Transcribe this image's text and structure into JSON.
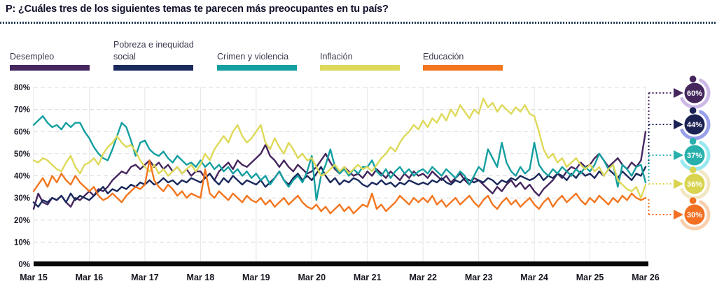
{
  "header": {
    "title": "P: ¿Cuáles tres de los siguientes temas te parecen más preocupantes en tu país?"
  },
  "legend": {
    "items": [
      {
        "label": "Desempleo",
        "color": "#45265e"
      },
      {
        "label": "Pobreza e inequidad social",
        "color": "#1b2a5c"
      },
      {
        "label": "Crimen y violencia",
        "color": "#149fa0"
      },
      {
        "label": "Inflación",
        "color": "#ded95a"
      },
      {
        "label": "Educación",
        "color": "#f3761f"
      }
    ]
  },
  "chart_data": {
    "type": "line",
    "title": "P: ¿Cuáles tres de los siguientes temas te parecen más preocupantes en tu país?",
    "xlabel": "",
    "ylabel": "",
    "ylim": [
      0,
      80
    ],
    "grid": true,
    "legend_position": "top",
    "x_tick_labels": [
      "Mar 15",
      "Mar 16",
      "Mar 17",
      "Mar 18",
      "Mar 19",
      "Mar 20",
      "Mar 21",
      "Mar 22",
      "Mar 23",
      "Mar 24",
      "Mar 25",
      "Mar 26"
    ],
    "y_tick_labels": [
      "0%",
      "10%",
      "20%",
      "30%",
      "40%",
      "50%",
      "60%",
      "70%",
      "80%"
    ],
    "points_frequency": "monthly (estimated from pixel trace)",
    "series": [
      {
        "name": "Desempleo",
        "color": "#45265e",
        "end_label": "60%",
        "values": [
          25,
          32,
          28,
          27,
          30,
          29,
          31,
          28,
          26,
          30,
          29,
          31,
          33,
          31,
          34,
          33,
          35,
          38,
          40,
          42,
          41,
          44,
          45,
          43,
          45,
          47,
          44,
          46,
          43,
          45,
          42,
          44,
          41,
          43,
          40,
          42,
          42,
          39,
          41,
          38,
          42,
          44,
          46,
          43,
          47,
          45,
          44,
          46,
          48,
          50,
          54,
          49,
          47,
          44,
          47,
          44,
          42,
          45,
          43,
          41,
          42,
          44,
          47,
          50,
          46,
          43,
          41,
          44,
          42,
          40,
          41,
          39,
          42,
          40,
          43,
          41,
          39,
          42,
          40,
          38,
          41,
          39,
          42,
          40,
          41,
          39,
          42,
          40,
          38,
          40,
          37,
          39,
          41,
          38,
          36,
          39,
          38,
          36,
          34,
          32,
          35,
          33,
          36,
          38,
          35,
          37,
          34,
          36,
          33,
          31,
          34,
          36,
          38,
          41,
          39,
          42,
          44,
          43,
          46,
          44,
          45,
          48,
          50,
          47,
          44,
          46,
          48,
          45,
          43,
          46,
          44,
          47,
          60
        ]
      },
      {
        "name": "Pobreza e inequidad social",
        "color": "#1b2a5c",
        "end_label": "44%",
        "values": [
          28,
          26,
          29,
          28,
          30,
          29,
          31,
          28,
          32,
          29,
          31,
          30,
          29,
          31,
          33,
          35,
          32,
          34,
          33,
          35,
          34,
          36,
          35,
          37,
          36,
          38,
          36,
          37,
          39,
          37,
          38,
          36,
          38,
          37,
          39,
          38,
          37,
          39,
          41,
          38,
          36,
          39,
          37,
          40,
          38,
          36,
          38,
          37,
          36,
          38,
          35,
          37,
          39,
          42,
          38,
          36,
          39,
          41,
          38,
          40,
          38,
          41,
          44,
          40,
          37,
          39,
          36,
          38,
          37,
          39,
          38,
          36,
          35,
          37,
          36,
          38,
          36,
          37,
          35,
          37,
          36,
          38,
          37,
          36,
          37,
          36,
          38,
          37,
          39,
          37,
          36,
          38,
          37,
          39,
          38,
          37,
          38,
          37,
          39,
          38,
          36,
          38,
          37,
          39,
          38,
          40,
          39,
          38,
          39,
          41,
          38,
          40,
          39,
          41,
          40,
          38,
          41,
          39,
          42,
          40,
          41,
          39,
          42,
          40,
          43,
          41,
          39,
          42,
          40,
          38,
          41,
          40,
          44
        ]
      },
      {
        "name": "Crimen y violencia",
        "color": "#149fa0",
        "end_label": "37%",
        "values": [
          63,
          65,
          67,
          64,
          62,
          63,
          61,
          64,
          62,
          64,
          64,
          60,
          57,
          53,
          50,
          48,
          47,
          52,
          58,
          64,
          62,
          56,
          49,
          55,
          56,
          52,
          50,
          49,
          51,
          48,
          46,
          49,
          47,
          45,
          46,
          44,
          47,
          44,
          46,
          43,
          45,
          42,
          44,
          41,
          43,
          40,
          42,
          39,
          41,
          38,
          40,
          36,
          39,
          42,
          38,
          35,
          38,
          40,
          37,
          42,
          49,
          29,
          40,
          45,
          52,
          44,
          41,
          43,
          40,
          43,
          41,
          44,
          44,
          47,
          42,
          40,
          43,
          39,
          42,
          44,
          41,
          43,
          40,
          42,
          43,
          41,
          44,
          42,
          40,
          43,
          41,
          39,
          42,
          40,
          36,
          40,
          44,
          42,
          52,
          48,
          44,
          55,
          46,
          42,
          40,
          44,
          41,
          43,
          55,
          45,
          42,
          40,
          43,
          41,
          44,
          42,
          40,
          43,
          41,
          44,
          42,
          45,
          50,
          47,
          43,
          45,
          35,
          45,
          43,
          40,
          44,
          45,
          37
        ]
      },
      {
        "name": "Inflación",
        "color": "#ded95a",
        "end_label": "36%",
        "values": [
          47,
          46,
          48,
          47,
          45,
          43,
          42,
          46,
          49,
          44,
          41,
          45,
          46,
          48,
          45,
          50,
          53,
          55,
          58,
          55,
          53,
          54,
          51,
          47,
          44,
          42,
          45,
          41,
          43,
          40,
          42,
          44,
          41,
          43,
          45,
          42,
          45,
          50,
          47,
          52,
          55,
          58,
          55,
          60,
          63,
          58,
          55,
          57,
          60,
          63,
          55,
          52,
          57,
          53,
          50,
          55,
          52,
          48,
          50,
          47,
          48,
          44,
          40,
          41,
          43,
          45,
          42,
          44,
          41,
          43,
          45,
          43,
          44,
          42,
          45,
          48,
          50,
          53,
          51,
          55,
          58,
          60,
          63,
          61,
          65,
          62,
          66,
          64,
          68,
          65,
          70,
          67,
          72,
          69,
          66,
          70,
          68,
          75,
          71,
          73,
          69,
          72,
          70,
          68,
          71,
          69,
          72,
          68,
          67,
          60,
          52,
          48,
          50,
          46,
          48,
          44,
          46,
          48,
          45,
          43,
          45,
          42,
          44,
          40,
          43,
          45,
          38,
          36,
          34,
          33,
          35,
          30,
          36
        ]
      },
      {
        "name": "Educación",
        "color": "#f3761f",
        "end_label": "30%",
        "values": [
          33,
          36,
          39,
          35,
          40,
          37,
          41,
          38,
          36,
          40,
          37,
          35,
          33,
          35,
          31,
          29,
          30,
          32,
          30,
          28,
          31,
          33,
          35,
          34,
          36,
          47,
          38,
          35,
          33,
          36,
          34,
          31,
          33,
          30,
          32,
          31,
          30,
          43,
          32,
          30,
          33,
          31,
          29,
          32,
          30,
          28,
          31,
          29,
          28,
          30,
          27,
          29,
          26,
          28,
          30,
          27,
          29,
          31,
          28,
          26,
          25,
          27,
          24,
          26,
          23,
          25,
          27,
          24,
          26,
          23,
          25,
          27,
          26,
          32,
          25,
          27,
          24,
          26,
          28,
          31,
          29,
          27,
          30,
          28,
          30,
          28,
          31,
          27,
          29,
          26,
          28,
          30,
          27,
          29,
          31,
          28,
          26,
          29,
          31,
          27,
          25,
          28,
          30,
          27,
          29,
          26,
          28,
          30,
          27,
          25,
          28,
          30,
          26,
          29,
          31,
          28,
          30,
          32,
          29,
          27,
          30,
          28,
          31,
          29,
          27,
          30,
          28,
          31,
          29,
          32,
          30,
          29,
          30
        ]
      }
    ]
  },
  "annotations": {
    "badges": [
      {
        "label": "60%",
        "color": "#44265c",
        "arc_color": "#cdb9e6"
      },
      {
        "label": "44%",
        "color": "#1b2153",
        "arc_color": "#99a0ea"
      },
      {
        "label": "37%",
        "color": "#28b0ac",
        "arc_color": "#97e9ef"
      },
      {
        "label": "36%",
        "color": "#d9d44f",
        "arc_color": "#f2e7c4"
      },
      {
        "label": "30%",
        "color": "#f36f21",
        "arc_color": "#f9d0ae"
      }
    ]
  }
}
